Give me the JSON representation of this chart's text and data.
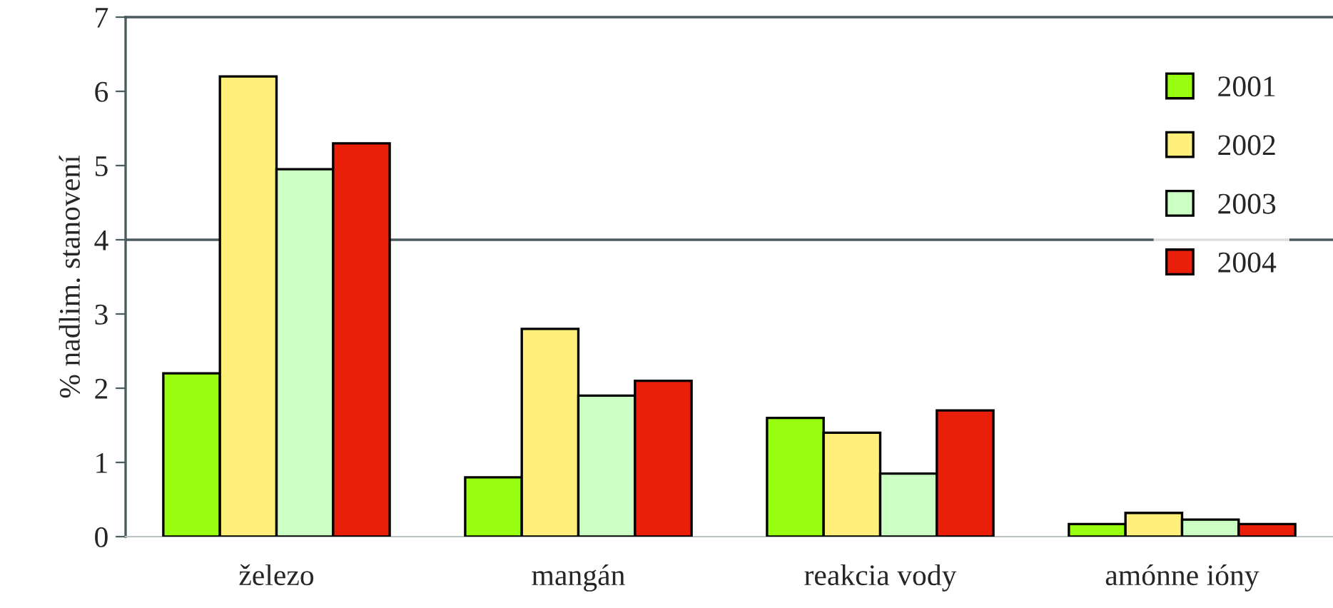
{
  "chart_data": {
    "type": "bar",
    "ylabel": "% nadlim. stanovení",
    "categories": [
      "železo",
      "mangán",
      "reakcia vody",
      "amónne ióny"
    ],
    "series": [
      {
        "name": "2001",
        "color": "#99ff11",
        "values": [
          2.2,
          0.8,
          1.6,
          0.17
        ]
      },
      {
        "name": "2002",
        "color": "#fef07a",
        "values": [
          6.2,
          2.8,
          1.4,
          0.32
        ]
      },
      {
        "name": "2003",
        "color": "#ccffc3",
        "values": [
          4.95,
          1.9,
          0.85,
          0.23
        ]
      },
      {
        "name": "2004",
        "color": "#ea1f0a",
        "values": [
          5.3,
          2.1,
          1.7,
          0.17
        ]
      }
    ],
    "ylim": [
      0,
      7
    ],
    "yticks": [
      0,
      1,
      2,
      3,
      4,
      5,
      6,
      7
    ],
    "ref_lines": [
      {
        "axis": "y",
        "value": 4,
        "color": "#4a5a5f"
      }
    ],
    "grid": false,
    "legend": "top right"
  }
}
